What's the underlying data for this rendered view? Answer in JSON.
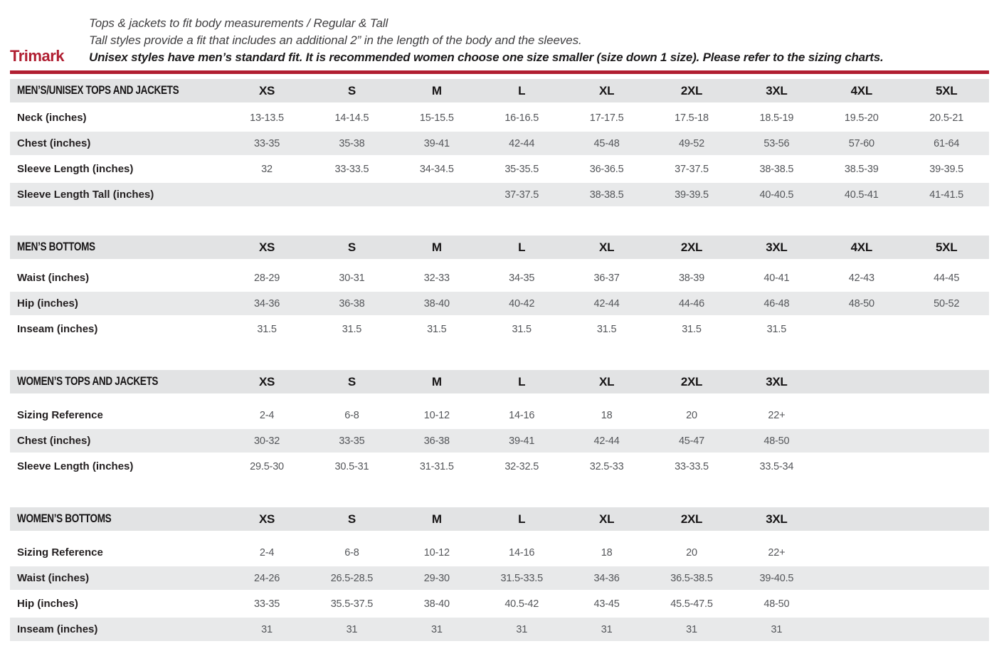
{
  "brand": {
    "name": "Trimark",
    "accent_color": "#B01E31"
  },
  "header": {
    "line1": "Tops & jackets to fit body measurements / Regular & Tall",
    "line2": "Tall styles provide a fit that includes an additional 2” in the length of the body and the sleeves.",
    "line3": "Unisex styles have men’s standard fit. It is recommended women choose one size smaller (size down 1 size).  Please refer to the sizing charts."
  },
  "colors": {
    "accent": "#B01E31",
    "header_band": "#E2E3E4",
    "row_stripe": "#E8E9EA",
    "value_text": "#54565A"
  },
  "tables": [
    {
      "title": "MEN’S/UNISEX TOPS AND JACKETS",
      "columns": [
        "XS",
        "S",
        "M",
        "L",
        "XL",
        "2XL",
        "3XL",
        "4XL",
        "5XL"
      ],
      "rows": [
        {
          "label": "Neck (inches)",
          "values": [
            "13-13.5",
            "14-14.5",
            "15-15.5",
            "16-16.5",
            "17-17.5",
            "17.5-18",
            "18.5-19",
            "19.5-20",
            "20.5-21"
          ]
        },
        {
          "label": "Chest (inches)",
          "values": [
            "33-35",
            "35-38",
            "39-41",
            "42-44",
            "45-48",
            "49-52",
            "53-56",
            "57-60",
            "61-64"
          ]
        },
        {
          "label": "Sleeve Length (inches)",
          "values": [
            "32",
            "33-33.5",
            "34-34.5",
            "35-35.5",
            "36-36.5",
            "37-37.5",
            "38-38.5",
            "38.5-39",
            "39-39.5"
          ]
        },
        {
          "label": "Sleeve Length Tall (inches)",
          "values": [
            "",
            "",
            "",
            "37-37.5",
            "38-38.5",
            "39-39.5",
            "40-40.5",
            "40.5-41",
            "41-41.5"
          ]
        }
      ]
    },
    {
      "title": "MEN’S BOTTOMS",
      "columns": [
        "XS",
        "S",
        "M",
        "L",
        "XL",
        "2XL",
        "3XL",
        "4XL",
        "5XL"
      ],
      "rows": [
        {
          "label": "Waist (inches)",
          "values": [
            "28-29",
            "30-31",
            "32-33",
            "34-35",
            "36-37",
            "38-39",
            "40-41",
            "42-43",
            "44-45"
          ]
        },
        {
          "label": "Hip (inches)",
          "values": [
            "34-36",
            "36-38",
            "38-40",
            "40-42",
            "42-44",
            "44-46",
            "46-48",
            "48-50",
            "50-52"
          ]
        },
        {
          "label": "Inseam (inches)",
          "values": [
            "31.5",
            "31.5",
            "31.5",
            "31.5",
            "31.5",
            "31.5",
            "31.5",
            "",
            ""
          ]
        }
      ]
    },
    {
      "title": "WOMEN’S TOPS AND JACKETS",
      "columns": [
        "XS",
        "S",
        "M",
        "L",
        "XL",
        "2XL",
        "3XL"
      ],
      "rows": [
        {
          "label": "Sizing Reference",
          "values": [
            "2-4",
            "6-8",
            "10-12",
            "14-16",
            "18",
            "20",
            "22+"
          ]
        },
        {
          "label": "Chest (inches)",
          "values": [
            "30-32",
            "33-35",
            "36-38",
            "39-41",
            "42-44",
            "45-47",
            "48-50"
          ]
        },
        {
          "label": "Sleeve Length (inches)",
          "values": [
            "29.5-30",
            "30.5-31",
            "31-31.5",
            "32-32.5",
            "32.5-33",
            "33-33.5",
            "33.5-34"
          ]
        }
      ]
    },
    {
      "title": "WOMEN’S BOTTOMS",
      "columns": [
        "XS",
        "S",
        "M",
        "L",
        "XL",
        "2XL",
        "3XL"
      ],
      "rows": [
        {
          "label": "Sizing Reference",
          "values": [
            "2-4",
            "6-8",
            "10-12",
            "14-16",
            "18",
            "20",
            "22+"
          ]
        },
        {
          "label": "Waist (inches)",
          "values": [
            "24-26",
            "26.5-28.5",
            "29-30",
            "31.5-33.5",
            "34-36",
            "36.5-38.5",
            "39-40.5"
          ]
        },
        {
          "label": "Hip (inches)",
          "values": [
            "33-35",
            "35.5-37.5",
            "38-40",
            "40.5-42",
            "43-45",
            "45.5-47.5",
            "48-50"
          ]
        },
        {
          "label": "Inseam (inches)",
          "values": [
            "31",
            "31",
            "31",
            "31",
            "31",
            "31",
            "31"
          ]
        }
      ]
    }
  ]
}
